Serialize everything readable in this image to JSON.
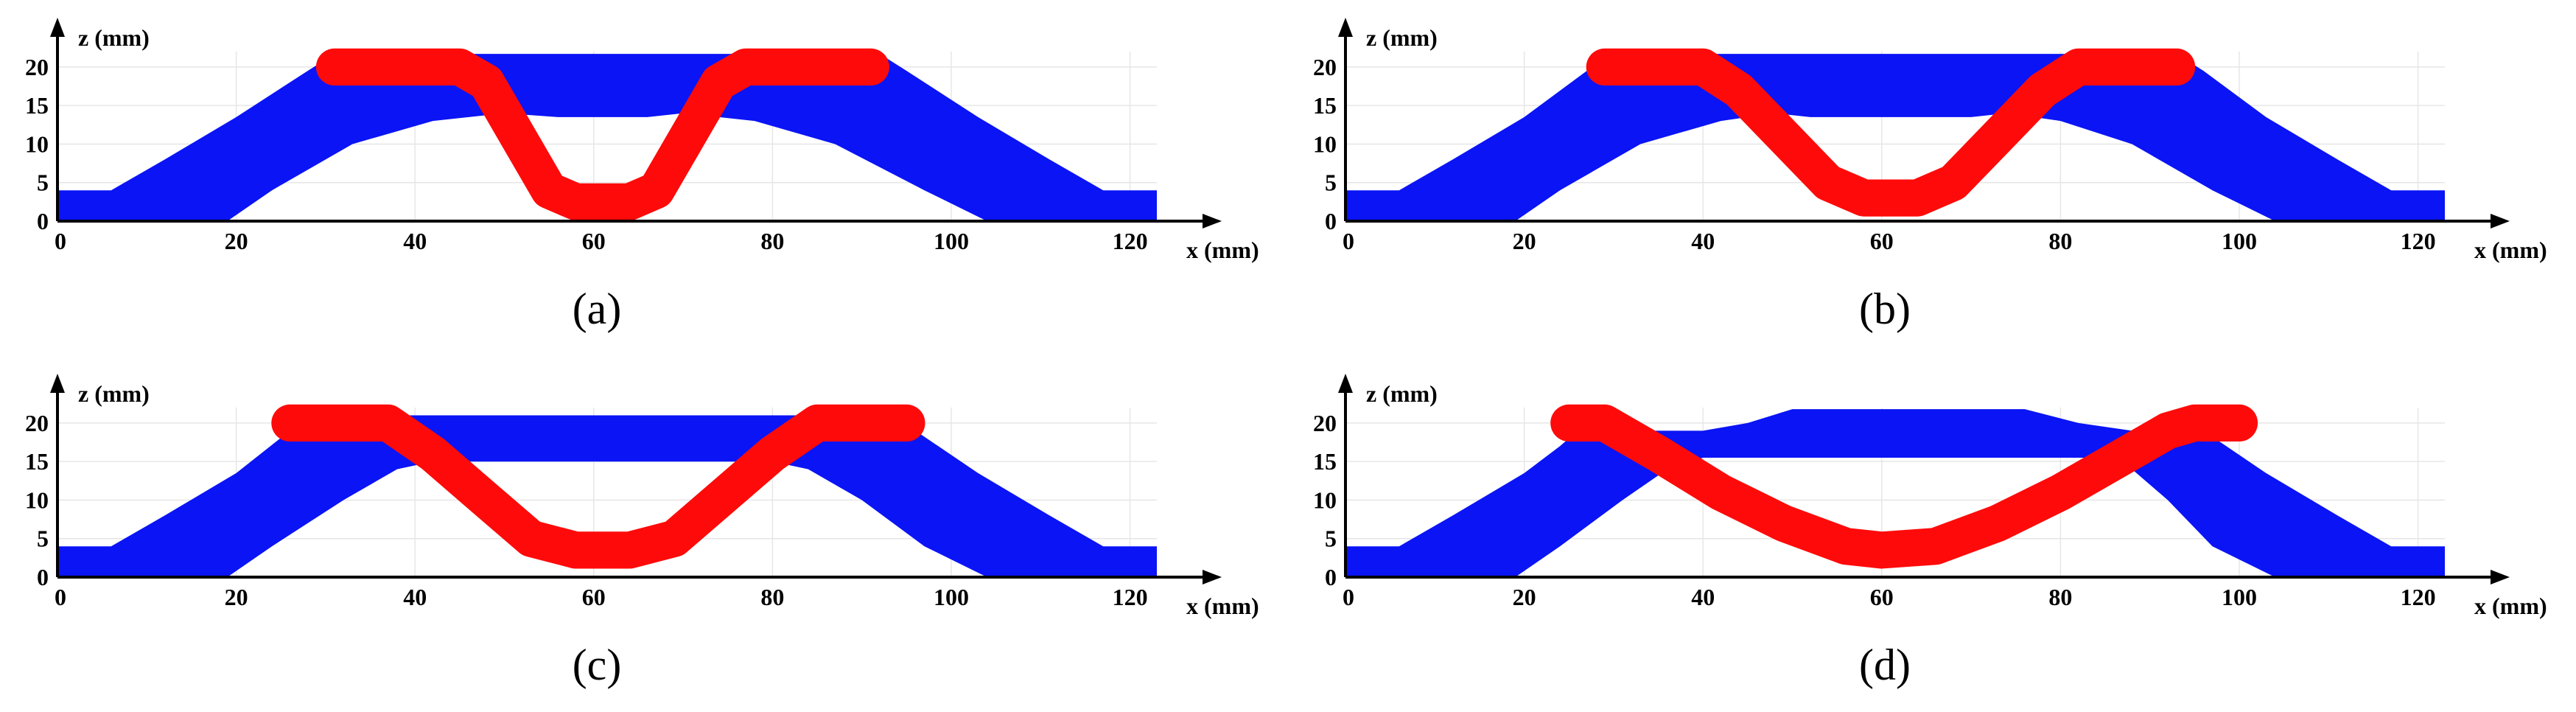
{
  "colors": {
    "blank": "#0a14f5",
    "punch": "#ff0a0a",
    "grid": "#e6e6e6",
    "axis": "#000000"
  },
  "chart_data": [
    {
      "type": "area",
      "caption": "(a)",
      "xlabel": "x (mm)",
      "ylabel": "z (mm)",
      "xlim": [
        0,
        123
      ],
      "ylim": [
        0,
        22
      ],
      "xticks": [
        "0",
        "20",
        "40",
        "60",
        "80",
        "100",
        "120"
      ],
      "xtick_values": [
        0,
        20,
        40,
        60,
        80,
        100,
        120
      ],
      "yticks": [
        "0",
        "5",
        "10",
        "15",
        "20"
      ],
      "ytick_values": [
        0,
        5,
        10,
        15,
        20
      ],
      "series": [
        {
          "name": "blank (blue)",
          "top": [
            [
              0,
              4
            ],
            [
              6,
              4
            ],
            [
              12,
              8
            ],
            [
              20,
              13.5
            ],
            [
              28,
              19.5
            ],
            [
              31,
              21.7
            ],
            [
              92,
              21.7
            ],
            [
              95,
              19.5
            ],
            [
              103,
              13.5
            ],
            [
              111,
              8
            ],
            [
              117,
              4
            ],
            [
              123,
              4
            ]
          ],
          "bottom": [
            [
              123,
              0
            ],
            [
              104,
              0
            ],
            [
              97,
              4
            ],
            [
              87,
              10
            ],
            [
              78,
              13
            ],
            [
              70,
              14
            ],
            [
              66,
              13.5
            ],
            [
              56,
              13.5
            ],
            [
              50,
              14
            ],
            [
              42,
              13
            ],
            [
              33,
              10
            ],
            [
              24,
              4
            ],
            [
              19,
              0
            ],
            [
              0,
              0
            ]
          ]
        },
        {
          "name": "punch (red)",
          "polyline": [
            [
              31,
              20
            ],
            [
              45,
              20
            ],
            [
              48,
              18
            ],
            [
              52,
              10
            ],
            [
              55,
              4
            ],
            [
              58,
              2.5
            ],
            [
              64,
              2.5
            ],
            [
              67,
              4
            ],
            [
              70,
              10
            ],
            [
              74,
              18
            ],
            [
              77,
              20
            ],
            [
              91,
              20
            ]
          ],
          "stroke_mm": 4.8
        }
      ]
    },
    {
      "type": "area",
      "caption": "(b)",
      "xlabel": "x (mm)",
      "ylabel": "z (mm)",
      "xlim": [
        0,
        123
      ],
      "ylim": [
        0,
        22
      ],
      "xticks": [
        "0",
        "20",
        "40",
        "60",
        "80",
        "100",
        "120"
      ],
      "xtick_values": [
        0,
        20,
        40,
        60,
        80,
        100,
        120
      ],
      "yticks": [
        "0",
        "5",
        "10",
        "15",
        "20"
      ],
      "ytick_values": [
        0,
        5,
        10,
        15,
        20
      ],
      "series": [
        {
          "name": "blank (blue)",
          "top": [
            [
              0,
              4
            ],
            [
              6,
              4
            ],
            [
              12,
              8
            ],
            [
              20,
              13.5
            ],
            [
              27,
              19.5
            ],
            [
              30,
              21.7
            ],
            [
              93,
              21.7
            ],
            [
              96,
              19.5
            ],
            [
              103,
              13.5
            ],
            [
              111,
              8
            ],
            [
              117,
              4
            ],
            [
              123,
              4
            ]
          ],
          "bottom": [
            [
              123,
              0
            ],
            [
              104,
              0
            ],
            [
              97,
              4
            ],
            [
              88,
              10
            ],
            [
              80,
              13
            ],
            [
              74,
              14
            ],
            [
              70,
              13.5
            ],
            [
              52,
              13.5
            ],
            [
              48,
              14
            ],
            [
              42,
              13
            ],
            [
              33,
              10
            ],
            [
              24,
              4
            ],
            [
              19,
              0
            ],
            [
              0,
              0
            ]
          ]
        },
        {
          "name": "punch (red)",
          "polyline": [
            [
              29,
              20
            ],
            [
              40,
              20
            ],
            [
              44,
              17
            ],
            [
              49,
              11
            ],
            [
              54,
              5
            ],
            [
              58,
              3
            ],
            [
              64,
              3
            ],
            [
              68,
              5
            ],
            [
              73,
              11
            ],
            [
              78,
              17
            ],
            [
              82,
              20
            ],
            [
              93,
              20
            ]
          ],
          "stroke_mm": 4.8
        }
      ]
    },
    {
      "type": "area",
      "caption": "(c)",
      "xlabel": "x (mm)",
      "ylabel": "z (mm)",
      "xlim": [
        0,
        123
      ],
      "ylim": [
        0,
        22
      ],
      "xticks": [
        "0",
        "20",
        "40",
        "60",
        "80",
        "100",
        "120"
      ],
      "xtick_values": [
        0,
        20,
        40,
        60,
        80,
        100,
        120
      ],
      "yticks": [
        "0",
        "5",
        "10",
        "15",
        "20"
      ],
      "ytick_values": [
        0,
        5,
        10,
        15,
        20
      ],
      "series": [
        {
          "name": "blank (blue)",
          "top": [
            [
              0,
              4
            ],
            [
              6,
              4
            ],
            [
              12,
              8
            ],
            [
              20,
              13.5
            ],
            [
              26,
              19
            ],
            [
              28,
              21
            ],
            [
              94,
              21
            ],
            [
              96,
              19
            ],
            [
              103,
              13.5
            ],
            [
              111,
              8
            ],
            [
              117,
              4
            ],
            [
              123,
              4
            ]
          ],
          "bottom": [
            [
              123,
              0
            ],
            [
              104,
              0
            ],
            [
              97,
              4
            ],
            [
              90,
              10
            ],
            [
              84,
              14
            ],
            [
              80,
              15
            ],
            [
              42,
              15
            ],
            [
              38,
              14
            ],
            [
              32,
              10
            ],
            [
              24,
              4
            ],
            [
              19,
              0
            ],
            [
              0,
              0
            ]
          ]
        },
        {
          "name": "punch (red)",
          "polyline": [
            [
              26,
              20
            ],
            [
              37,
              20
            ],
            [
              42,
              16
            ],
            [
              48,
              10
            ],
            [
              53,
              5
            ],
            [
              58,
              3.5
            ],
            [
              64,
              3.5
            ],
            [
              69,
              5
            ],
            [
              74,
              10
            ],
            [
              80,
              16
            ],
            [
              85,
              20
            ],
            [
              95,
              20
            ]
          ],
          "stroke_mm": 4.8
        }
      ]
    },
    {
      "type": "area",
      "caption": "(d)",
      "xlabel": "x (mm)",
      "ylabel": "z (mm)",
      "xlim": [
        0,
        123
      ],
      "ylim": [
        0,
        22
      ],
      "xticks": [
        "0",
        "20",
        "40",
        "60",
        "80",
        "100",
        "120"
      ],
      "xtick_values": [
        0,
        20,
        40,
        60,
        80,
        100,
        120
      ],
      "yticks": [
        "0",
        "5",
        "10",
        "15",
        "20"
      ],
      "ytick_values": [
        0,
        5,
        10,
        15,
        20
      ],
      "series": [
        {
          "name": "blank (blue)",
          "top": [
            [
              0,
              4
            ],
            [
              6,
              4
            ],
            [
              12,
              8
            ],
            [
              20,
              13.5
            ],
            [
              24,
              17
            ],
            [
              26,
              19
            ],
            [
              40,
              19
            ],
            [
              45,
              20
            ],
            [
              50,
              21.8
            ],
            [
              76,
              21.8
            ],
            [
              82,
              20
            ],
            [
              88,
              19
            ],
            [
              96,
              19
            ],
            [
              103,
              13.5
            ],
            [
              111,
              8
            ],
            [
              117,
              4
            ],
            [
              123,
              4
            ]
          ],
          "bottom": [
            [
              123,
              0
            ],
            [
              104,
              0
            ],
            [
              97,
              4
            ],
            [
              92,
              10
            ],
            [
              88,
              14
            ],
            [
              84,
              15.5
            ],
            [
              40,
              15.5
            ],
            [
              36,
              14
            ],
            [
              31,
              10
            ],
            [
              24,
              4
            ],
            [
              19,
              0
            ],
            [
              0,
              0
            ]
          ]
        },
        {
          "name": "punch (red)",
          "polyline": [
            [
              25,
              20
            ],
            [
              29,
              20
            ],
            [
              35,
              16
            ],
            [
              42,
              11
            ],
            [
              49,
              7
            ],
            [
              56,
              4
            ],
            [
              60,
              3.5
            ],
            [
              66,
              4
            ],
            [
              73,
              7
            ],
            [
              80,
              11
            ],
            [
              86,
              15
            ],
            [
              92,
              19
            ],
            [
              95,
              20
            ],
            [
              100,
              20
            ]
          ],
          "stroke_mm": 4.8
        }
      ]
    }
  ]
}
